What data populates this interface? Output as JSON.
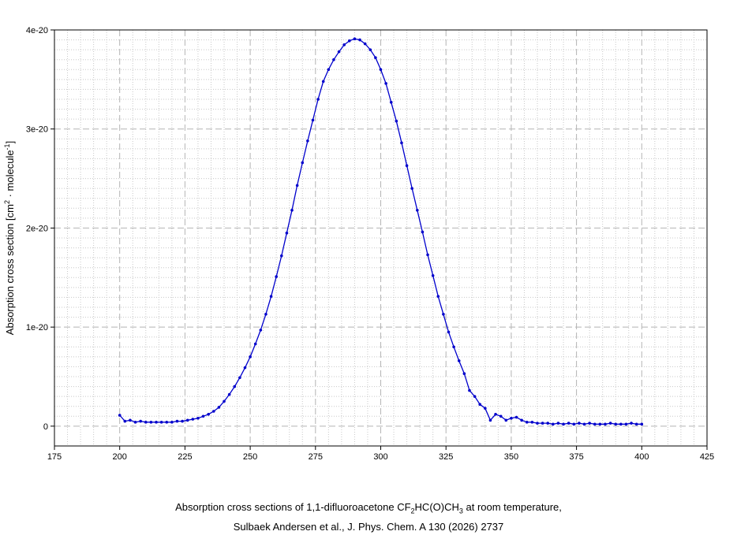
{
  "chart_data": {
    "type": "line",
    "title": "",
    "xlabel": "",
    "ylabel": {
      "prefix": "Absorption cross section [cm",
      "exp1": "2",
      "middle": " · molecule",
      "exp2": "-1",
      "suffix": "]"
    },
    "xlim": [
      175,
      425
    ],
    "ylim": [
      -2e-21,
      4e-20
    ],
    "x_ticks": [
      "175",
      "200",
      "225",
      "250",
      "275",
      "300",
      "325",
      "350",
      "375",
      "400",
      "425"
    ],
    "y_ticks": [
      "0",
      "1e-20",
      "2e-20",
      "3e-20",
      "4e-20"
    ],
    "grid": true,
    "line_color": "#0000cc",
    "series": [
      {
        "x": [
          200,
          202,
          204,
          206,
          208,
          210,
          212,
          214,
          216,
          218,
          220,
          222,
          224,
          226,
          228,
          230,
          232,
          234,
          236,
          238,
          240,
          242,
          244,
          246,
          248,
          250,
          252,
          254,
          256,
          258,
          260,
          262,
          264,
          266,
          268,
          270,
          272,
          274,
          276,
          278,
          280,
          282,
          284,
          286,
          288,
          290,
          292,
          294,
          296,
          298,
          300,
          302,
          304,
          306,
          308,
          310,
          312,
          314,
          316,
          318,
          320,
          322,
          324,
          326,
          328,
          330,
          332,
          334,
          336,
          338,
          340,
          342,
          344,
          346,
          348,
          350,
          352,
          354,
          356,
          358,
          360,
          362,
          364,
          366,
          368,
          370,
          372,
          374,
          376,
          378,
          380,
          382,
          384,
          386,
          388,
          390,
          392,
          394,
          396,
          398,
          400
        ],
        "y": [
          1.1e-21,
          5e-22,
          6e-22,
          4e-22,
          5e-22,
          4e-22,
          4e-22,
          4e-22,
          4e-22,
          4e-22,
          4e-22,
          5e-22,
          5e-22,
          6e-22,
          7e-22,
          8e-22,
          1e-21,
          1.2e-21,
          1.5e-21,
          1.9e-21,
          2.5e-21,
          3.2e-21,
          4e-21,
          4.9e-21,
          5.9e-21,
          7e-21,
          8.3e-21,
          9.7e-21,
          1.13e-20,
          1.31e-20,
          1.51e-20,
          1.72e-20,
          1.95e-20,
          2.18e-20,
          2.43e-20,
          2.66e-20,
          2.88e-20,
          3.09e-20,
          3.3e-20,
          3.48e-20,
          3.6e-20,
          3.7e-20,
          3.78e-20,
          3.85e-20,
          3.89e-20,
          3.91e-20,
          3.9e-20,
          3.86e-20,
          3.8e-20,
          3.72e-20,
          3.6e-20,
          3.46e-20,
          3.27e-20,
          3.08e-20,
          2.86e-20,
          2.63e-20,
          2.4e-20,
          2.18e-20,
          1.96e-20,
          1.73e-20,
          1.52e-20,
          1.31e-20,
          1.13e-20,
          9.5e-21,
          8e-21,
          6.6e-21,
          5.3e-21,
          3.6e-21,
          3e-21,
          2.2e-21,
          1.8e-21,
          6e-22,
          1.2e-21,
          1e-21,
          6e-22,
          8e-22,
          9e-22,
          6e-22,
          4e-22,
          4e-22,
          3e-22,
          3e-22,
          3e-22,
          2e-22,
          3e-22,
          2e-22,
          3e-22,
          2e-22,
          3e-22,
          2e-22,
          3e-22,
          2e-22,
          2e-22,
          2e-22,
          3e-22,
          2e-22,
          2e-22,
          2e-22,
          3e-22,
          2e-22,
          2e-22
        ]
      }
    ]
  },
  "caption": {
    "line1_a": "Absorption cross sections of 1,1-difluoroacetone CF",
    "line1_sub1": "2",
    "line1_b": "HC(O)CH",
    "line1_sub2": "3",
    "line1_c": " at room temperature,",
    "line2": "Sulbaek Andersen et al., J. Phys. Chem. A 130 (2026) 2737"
  }
}
